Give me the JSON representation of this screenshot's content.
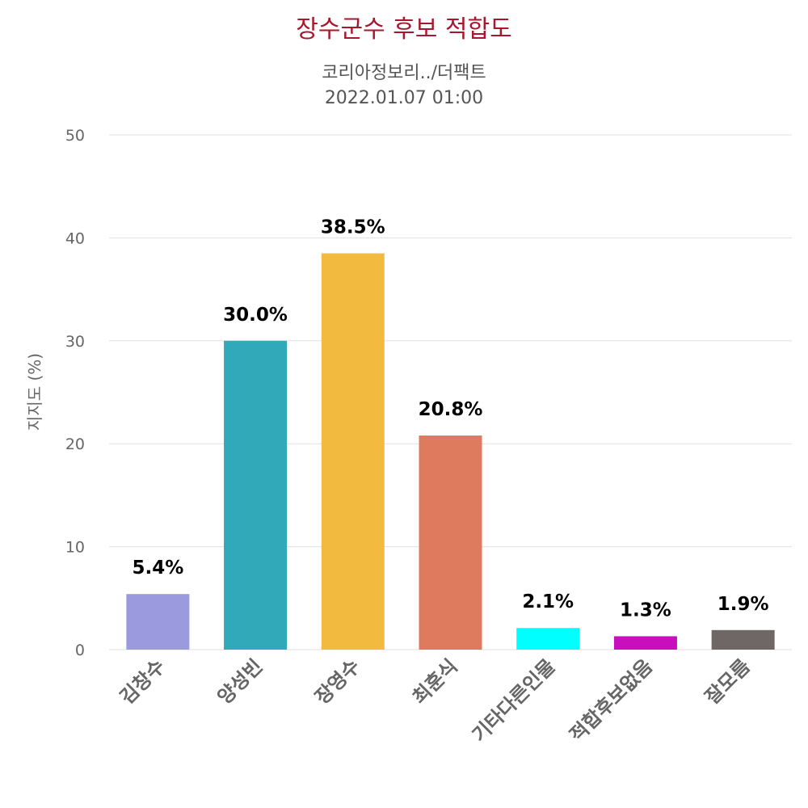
{
  "chart_data": {
    "type": "bar",
    "title": "장수군수 후보 적합도",
    "subtitle_lines": [
      "코리아정보리../더팩트",
      "2022.01.07 01:00"
    ],
    "ylabel": "지지도 (%)",
    "xlabel": "",
    "ylim": [
      0,
      50
    ],
    "yticks": [
      0,
      10,
      20,
      30,
      40,
      50
    ],
    "grid": true,
    "categories": [
      "김창수",
      "양성빈",
      "장영수",
      "최훈식",
      "기타다른인물",
      "적합후보없음",
      "잘모름"
    ],
    "values": [
      5.4,
      30.0,
      38.5,
      20.8,
      2.1,
      1.3,
      1.9
    ],
    "data_labels": [
      "5.4%",
      "30.0%",
      "38.5%",
      "20.8%",
      "2.1%",
      "1.3%",
      "1.9%"
    ],
    "colors": [
      "#9b9adf",
      "#31a9b8",
      "#f2bb40",
      "#de7b5e",
      "#00ffff",
      "#c70fbd",
      "#6f6666"
    ]
  }
}
